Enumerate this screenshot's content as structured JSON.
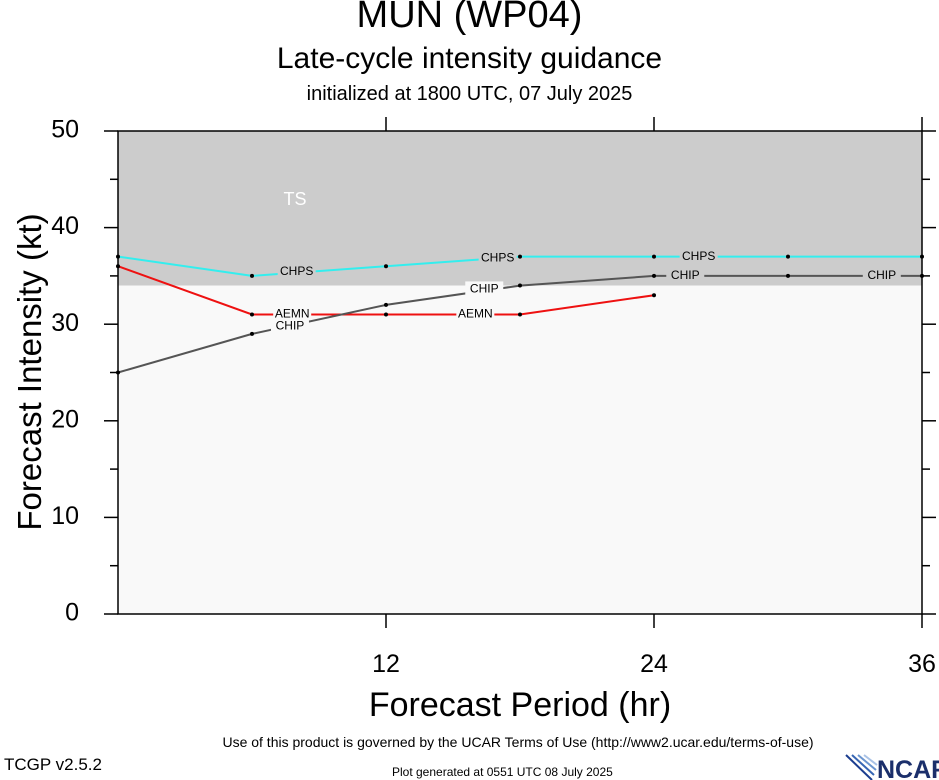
{
  "header": {
    "title": "MUN (WP04)",
    "subtitle": "Late-cycle intensity guidance",
    "initialized": "initialized at 1800 UTC, 07 July 2025"
  },
  "footer": {
    "terms": "Use of this product is governed by the UCAR Terms of Use (http://www2.ucar.edu/terms-of-use)",
    "version": "TCGP v2.5.2",
    "generated": "Plot generated at 0551 UTC   08 July 2025",
    "logo_text": "NCAR"
  },
  "chart_data": {
    "type": "line",
    "xlabel": "Forecast Period (hr)",
    "ylabel": "Forecast Intensity (kt)",
    "xlim": [
      0,
      36
    ],
    "ylim": [
      0,
      50
    ],
    "xticks": [
      12,
      24,
      36
    ],
    "yticks": [
      0,
      10,
      20,
      30,
      40,
      50
    ],
    "grid": false,
    "legend": "none",
    "regions": [
      {
        "label": "TS",
        "y_from": 34,
        "y_to": 50,
        "color": "#cccccc"
      },
      {
        "label": "",
        "y_from": 0,
        "y_to": 34,
        "color": "#f9f9f9"
      }
    ],
    "series": [
      {
        "name": "CHPS",
        "color": "#33eeee",
        "x": [
          0,
          6,
          12,
          18,
          24,
          30,
          36
        ],
        "y": [
          37,
          35,
          36,
          37,
          37,
          37,
          37
        ],
        "labels": [
          {
            "text": "CHPS",
            "x": 8.0,
            "y": 35.4
          },
          {
            "text": "CHPS",
            "x": 17.0,
            "y": 36.8
          },
          {
            "text": "CHPS",
            "x": 26.0,
            "y": 37.0
          }
        ]
      },
      {
        "name": "AEMN",
        "color": "#ee1111",
        "x": [
          0,
          6,
          12,
          18,
          24
        ],
        "y": [
          36,
          31,
          31,
          31,
          33
        ],
        "labels": [
          {
            "text": "AEMN",
            "x": 7.8,
            "y": 31.0
          },
          {
            "text": "AEMN",
            "x": 16.0,
            "y": 31.0
          }
        ]
      },
      {
        "name": "CHIP",
        "color": "#555555",
        "x": [
          0,
          6,
          12,
          18,
          24,
          30,
          36
        ],
        "y": [
          25,
          29,
          32,
          34,
          35,
          35,
          35
        ],
        "labels": [
          {
            "text": "CHIP",
            "x": 7.7,
            "y": 29.8
          },
          {
            "text": "CHIP",
            "x": 16.4,
            "y": 33.6
          },
          {
            "text": "CHIP",
            "x": 25.4,
            "y": 35.0
          },
          {
            "text": "CHIP",
            "x": 34.2,
            "y": 35.0
          }
        ]
      }
    ]
  }
}
